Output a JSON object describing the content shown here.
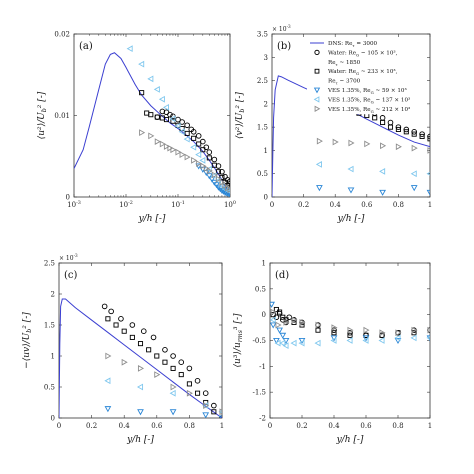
{
  "chart_data": [
    {
      "panel": "(a)",
      "type": "scatter",
      "xscale": "log",
      "xlim": [
        0.001,
        1
      ],
      "ylim": [
        0,
        0.02
      ],
      "xticks": [
        "10^{-3}",
        "10^{-2}",
        "10^{-1}",
        "10^{0}"
      ],
      "yticks": [
        "0",
        "0.01",
        "0.02"
      ],
      "xlabel": "y/h [-]",
      "ylabel": "⟨u²⟩/U_b² [-]",
      "series": [
        {
          "name": "DNS: Re_τ = 3000",
          "kind": "line",
          "color": "#3b3fd1",
          "x": [
            0.001,
            0.0015,
            0.002,
            0.003,
            0.004,
            0.005,
            0.006,
            0.008,
            0.01,
            0.015,
            0.02,
            0.03,
            0.05,
            0.07,
            0.1,
            0.15,
            0.2,
            0.3,
            0.4,
            0.5,
            0.6,
            0.7,
            0.8,
            0.9,
            1.0
          ],
          "y": [
            0.0035,
            0.0058,
            0.0088,
            0.0132,
            0.0163,
            0.0175,
            0.0177,
            0.017,
            0.0159,
            0.0138,
            0.0125,
            0.0112,
            0.0099,
            0.0091,
            0.0084,
            0.0075,
            0.0068,
            0.0056,
            0.0045,
            0.0036,
            0.0028,
            0.0021,
            0.0014,
            0.0008,
            0.0003
          ]
        },
        {
          "name": "Water: Re_G ~ 105 × 10³, Re_τ ~ 1850",
          "kind": "marker",
          "marker": "circle",
          "color": "#000000",
          "x": [
            0.04,
            0.05,
            0.06,
            0.07,
            0.08,
            0.1,
            0.12,
            0.15,
            0.18,
            0.2,
            0.25,
            0.3,
            0.35,
            0.4,
            0.5,
            0.6,
            0.7,
            0.8,
            0.9,
            1.0
          ],
          "y": [
            0.0098,
            0.0105,
            0.0104,
            0.0101,
            0.0099,
            0.0095,
            0.0092,
            0.0088,
            0.0083,
            0.008,
            0.0075,
            0.0068,
            0.0061,
            0.0055,
            0.0046,
            0.0038,
            0.0031,
            0.0025,
            0.0021,
            0.0019
          ]
        },
        {
          "name": "Water: Re_G ~ 233 × 10³, Re_τ ~ 3700",
          "kind": "marker",
          "marker": "square",
          "color": "#000000",
          "x": [
            0.02,
            0.025,
            0.03,
            0.04,
            0.05,
            0.06,
            0.08,
            0.1,
            0.12,
            0.15,
            0.2,
            0.25,
            0.3,
            0.4,
            0.5,
            0.6,
            0.7,
            0.8,
            0.9,
            1.0
          ],
          "y": [
            0.0128,
            0.0103,
            0.0101,
            0.0098,
            0.0097,
            0.0095,
            0.0093,
            0.0088,
            0.0084,
            0.0078,
            0.0072,
            0.0065,
            0.0058,
            0.0048,
            0.0039,
            0.0031,
            0.0024,
            0.0018,
            0.0014,
            0.0012
          ]
        },
        {
          "name": "VES 1.35%, Re_G ~ 59 × 10³",
          "kind": "marker",
          "marker": "tri-down",
          "color": "#2a86d6",
          "x": [
            0.25,
            0.3,
            0.35,
            0.4,
            0.45,
            0.5,
            0.55,
            0.6,
            0.65,
            0.7,
            0.75,
            0.8,
            0.85,
            0.9,
            0.95,
            1.0
          ],
          "y": [
            0.0038,
            0.0034,
            0.003,
            0.0026,
            0.0022,
            0.0018,
            0.0015,
            0.0012,
            0.001,
            0.0008,
            0.0007,
            0.0006,
            0.0005,
            0.0005,
            0.0004,
            0.0004
          ]
        },
        {
          "name": "VES 1.35%, Re_G ~ 137 × 10³",
          "kind": "marker",
          "marker": "tri-left",
          "color": "#7fc7ee",
          "x": [
            0.012,
            0.02,
            0.03,
            0.04,
            0.05,
            0.06,
            0.08,
            0.1,
            0.12,
            0.15,
            0.2,
            0.25,
            0.3,
            0.4,
            0.5,
            0.6,
            0.7,
            0.8,
            0.9,
            1.0
          ],
          "y": [
            0.0182,
            0.0163,
            0.0145,
            0.0132,
            0.012,
            0.011,
            0.0096,
            0.0087,
            0.008,
            0.0071,
            0.0061,
            0.0052,
            0.0045,
            0.0034,
            0.0026,
            0.002,
            0.0014,
            0.001,
            0.0008,
            0.0007
          ]
        },
        {
          "name": "VES 1.35%, Re_G ~ 212 × 10³",
          "kind": "marker",
          "marker": "tri-right",
          "color": "#8e8e8e",
          "x": [
            0.02,
            0.03,
            0.04,
            0.05,
            0.06,
            0.07,
            0.08,
            0.1,
            0.12,
            0.15,
            0.2,
            0.25,
            0.3,
            0.35,
            0.4,
            0.5,
            0.6,
            0.7,
            0.8,
            0.9,
            1.0
          ],
          "y": [
            0.0079,
            0.0075,
            0.0068,
            0.0065,
            0.0062,
            0.006,
            0.0058,
            0.0055,
            0.0052,
            0.0049,
            0.0045,
            0.0041,
            0.0038,
            0.0035,
            0.0032,
            0.0027,
            0.0022,
            0.0018,
            0.0014,
            0.0011,
            0.0009
          ]
        }
      ]
    },
    {
      "panel": "(b)",
      "type": "scatter",
      "xlim": [
        0,
        1
      ],
      "ylim": [
        0,
        0.0035
      ],
      "multiplier": "× 10^{-3}",
      "xticks": [
        "0",
        "0.2",
        "0.4",
        "0.6",
        "0.8",
        "1"
      ],
      "yticks": [
        "0",
        "0.5",
        "1",
        "1.5",
        "2",
        "2.5",
        "3",
        "3.5"
      ],
      "xlabel": "y/h [-]",
      "ylabel": "⟨v²⟩/U_b² [-]",
      "legend_position": "top-right",
      "series": [
        {
          "name": "DNS: Re_τ = 3000",
          "kind": "line",
          "color": "#3b3fd1",
          "x": [
            0,
            0.005,
            0.01,
            0.02,
            0.04,
            0.06,
            0.1,
            0.15,
            0.2,
            0.3,
            0.4,
            0.5,
            0.6,
            0.7,
            0.8,
            0.9,
            1.0
          ],
          "y": [
            0,
            0.0009,
            0.0017,
            0.0023,
            0.0026,
            0.00258,
            0.00251,
            0.00243,
            0.00235,
            0.0022,
            0.00203,
            0.00185,
            0.00167,
            0.0015,
            0.00133,
            0.00118,
            0.00108
          ]
        },
        {
          "name": "Water: Re_G ~ 105 × 10³, Re_τ ~ 1850",
          "kind": "marker",
          "marker": "circle",
          "color": "#000000",
          "x": [
            0.28,
            0.32,
            0.38,
            0.45,
            0.52,
            0.58,
            0.65,
            0.7,
            0.75,
            0.8,
            0.85,
            0.9,
            0.95,
            1.0
          ],
          "y": [
            0.0024,
            0.00235,
            0.0022,
            0.0021,
            0.002,
            0.0019,
            0.0018,
            0.0017,
            0.0016,
            0.0015,
            0.00145,
            0.0014,
            0.00135,
            0.0013
          ]
        },
        {
          "name": "Water: Re_G ~ 233 × 10³, Re_τ ~ 3700",
          "kind": "marker",
          "marker": "square",
          "color": "#000000",
          "x": [
            0.3,
            0.35,
            0.4,
            0.45,
            0.5,
            0.55,
            0.6,
            0.65,
            0.7,
            0.75,
            0.8,
            0.85,
            0.9,
            0.95,
            1.0
          ],
          "y": [
            0.0022,
            0.0021,
            0.002,
            0.0019,
            0.00185,
            0.0018,
            0.00175,
            0.0017,
            0.0016,
            0.0015,
            0.00145,
            0.0014,
            0.00135,
            0.0013,
            0.00125
          ]
        },
        {
          "name": "VES 1.35%, Re_G ~ 59 × 10³",
          "kind": "marker",
          "marker": "tri-down",
          "color": "#2a86d6",
          "x": [
            0.3,
            0.5,
            0.7,
            0.9,
            1.0
          ],
          "y": [
            0.0002,
            0.00015,
            0.0001,
            0.0002,
            0.0001
          ]
        },
        {
          "name": "VES 1.35%, Re_G ~ 137 × 10³",
          "kind": "marker",
          "marker": "tri-left",
          "color": "#7fc7ee",
          "x": [
            0.3,
            0.5,
            0.7,
            0.9,
            1.0
          ],
          "y": [
            0.0007,
            0.0006,
            0.00055,
            0.0005,
            0.0005
          ]
        },
        {
          "name": "VES 1.35%, Re_G ~ 212 × 10³",
          "kind": "marker",
          "marker": "tri-right",
          "color": "#8e8e8e",
          "x": [
            0.3,
            0.4,
            0.5,
            0.6,
            0.7,
            0.8,
            0.9,
            1.0
          ],
          "y": [
            0.0012,
            0.00118,
            0.00116,
            0.00114,
            0.0011,
            0.00108,
            0.00105,
            0.001
          ]
        }
      ]
    },
    {
      "panel": "(c)",
      "type": "scatter",
      "xlim": [
        0,
        1
      ],
      "ylim": [
        0,
        0.0025
      ],
      "multiplier": "× 10^{-3}",
      "xticks": [
        "0",
        "0.2",
        "0.4",
        "0.6",
        "0.8",
        "1"
      ],
      "yticks": [
        "0",
        "0.5",
        "1",
        "1.5",
        "2",
        "2.5"
      ],
      "xlabel": "y/h [-]",
      "ylabel": "−⟨uv⟩/U_b² [-]",
      "series": [
        {
          "name": "DNS: Re_τ = 3000",
          "kind": "line",
          "color": "#3b3fd1",
          "x": [
            0,
            0.005,
            0.01,
            0.02,
            0.04,
            0.1,
            0.2,
            0.3,
            0.4,
            0.5,
            0.6,
            0.7,
            0.8,
            0.9,
            1.0
          ],
          "y": [
            0,
            0.0012,
            0.0018,
            0.00192,
            0.00192,
            0.00178,
            0.00158,
            0.00138,
            0.00118,
            0.00098,
            0.00078,
            0.00058,
            0.00038,
            0.00019,
            0.0
          ]
        },
        {
          "name": "Water: Re_G ~ 105 × 10³, Re_τ ~ 1850",
          "kind": "marker",
          "marker": "circle",
          "color": "#000000",
          "x": [
            0.28,
            0.32,
            0.38,
            0.45,
            0.52,
            0.58,
            0.65,
            0.7,
            0.75,
            0.8,
            0.85,
            0.9,
            0.95,
            1.0
          ],
          "y": [
            0.0018,
            0.00172,
            0.0016,
            0.0015,
            0.0014,
            0.0013,
            0.0011,
            0.001,
            0.0009,
            0.0008,
            0.0006,
            0.0004,
            0.0002,
            0.0
          ]
        },
        {
          "name": "Water: Re_G ~ 233 × 10³, Re_τ ~ 3700",
          "kind": "marker",
          "marker": "square",
          "color": "#000000",
          "x": [
            0.3,
            0.35,
            0.4,
            0.45,
            0.5,
            0.55,
            0.6,
            0.65,
            0.7,
            0.75,
            0.8,
            0.85,
            0.9,
            0.95,
            1.0
          ],
          "y": [
            0.0016,
            0.0015,
            0.0014,
            0.0013,
            0.0012,
            0.0011,
            0.001,
            0.0009,
            0.0008,
            0.0007,
            0.00055,
            0.0004,
            0.00025,
            0.0001,
            0.0
          ]
        },
        {
          "name": "VES 1.35%, Re_G ~ 59 × 10³",
          "kind": "marker",
          "marker": "tri-down",
          "color": "#2a86d6",
          "x": [
            0.3,
            0.5,
            0.7,
            0.9,
            1.0
          ],
          "y": [
            0.00015,
            0.0001,
            0.0001,
            5e-05,
            0.0
          ]
        },
        {
          "name": "VES 1.35%, Re_G ~ 137 × 10³",
          "kind": "marker",
          "marker": "tri-left",
          "color": "#7fc7ee",
          "x": [
            0.3,
            0.5,
            0.7,
            0.9,
            1.0
          ],
          "y": [
            0.0006,
            0.0005,
            0.0004,
            0.0002,
            0.0001
          ]
        },
        {
          "name": "VES 1.35%, Re_G ~ 212 × 10³",
          "kind": "marker",
          "marker": "tri-right",
          "color": "#8e8e8e",
          "x": [
            0.3,
            0.4,
            0.5,
            0.6,
            0.7,
            0.8,
            0.9,
            1.0
          ],
          "y": [
            0.001,
            0.0009,
            0.0008,
            0.0007,
            0.0005,
            0.0004,
            0.0002,
            0.0001
          ]
        }
      ]
    },
    {
      "panel": "(d)",
      "type": "scatter",
      "xlim": [
        0,
        1
      ],
      "ylim": [
        -2,
        1
      ],
      "xticks": [
        "0",
        "0.2",
        "0.4",
        "0.6",
        "0.8",
        "1"
      ],
      "yticks": [
        "-2",
        "-1.5",
        "-1",
        "-0.5",
        "0",
        "0.5",
        "1"
      ],
      "xlabel": "y/h [-]",
      "ylabel": "⟨u³⟩/u_rms³ [-]",
      "series": [
        {
          "name": "Water: Re_G ~ 105 × 10³, Re_τ ~ 1850",
          "kind": "marker",
          "marker": "circle",
          "color": "#000000",
          "x": [
            0.04,
            0.06,
            0.08,
            0.1,
            0.12,
            0.15,
            0.2,
            0.3,
            0.4,
            0.5,
            0.6,
            0.7,
            0.8,
            0.9,
            1.0
          ],
          "y": [
            -0.05,
            0.02,
            -0.1,
            -0.15,
            -0.05,
            -0.1,
            -0.15,
            -0.2,
            -0.3,
            -0.35,
            -0.4,
            -0.4,
            -0.35,
            -0.3,
            -0.3
          ]
        },
        {
          "name": "Water: Re_G ~ 233 × 10³, Re_τ ~ 3700",
          "kind": "marker",
          "marker": "square",
          "color": "#000000",
          "x": [
            0.02,
            0.04,
            0.06,
            0.08,
            0.1,
            0.15,
            0.2,
            0.3,
            0.4,
            0.5,
            0.6,
            0.7,
            0.8,
            0.9,
            1.0
          ],
          "y": [
            0.0,
            0.1,
            0.05,
            -0.05,
            -0.1,
            -0.15,
            -0.2,
            -0.3,
            -0.35,
            -0.4,
            -0.4,
            -0.4,
            -0.35,
            -0.35,
            -0.3
          ]
        },
        {
          "name": "VES 1.35%, Re_G ~ 59 × 10³",
          "kind": "marker",
          "marker": "tri-down",
          "color": "#2a86d6",
          "x": [
            0.01,
            0.02,
            0.04,
            0.06,
            0.08,
            0.1,
            0.2,
            0.4,
            0.6,
            0.8,
            1.0
          ],
          "y": [
            0.2,
            -0.2,
            -0.5,
            -0.3,
            -0.4,
            -0.5,
            -0.5,
            -0.45,
            -0.45,
            -0.5,
            -0.45
          ]
        },
        {
          "name": "VES 1.35%, Re_G ~ 137 × 10³",
          "kind": "marker",
          "marker": "tri-left",
          "color": "#7fc7ee",
          "x": [
            0.02,
            0.05,
            0.08,
            0.1,
            0.15,
            0.2,
            0.3,
            0.4,
            0.5,
            0.6,
            0.7,
            0.8,
            0.9,
            1.0
          ],
          "y": [
            -0.1,
            -0.55,
            -0.55,
            -0.6,
            -0.55,
            -0.55,
            -0.55,
            -0.5,
            -0.5,
            -0.5,
            -0.5,
            -0.45,
            -0.45,
            -0.45
          ]
        },
        {
          "name": "VES 1.35%, Re_G ~ 212 × 10³",
          "kind": "marker",
          "marker": "tri-right",
          "color": "#8e8e8e",
          "x": [
            0.02,
            0.05,
            0.1,
            0.15,
            0.2,
            0.3,
            0.4,
            0.5,
            0.6,
            0.7,
            0.8,
            0.9,
            1.0
          ],
          "y": [
            0.05,
            -0.2,
            -0.15,
            -0.1,
            -0.15,
            -0.2,
            -0.25,
            -0.3,
            -0.3,
            -0.35,
            -0.35,
            -0.3,
            -0.3
          ]
        }
      ]
    }
  ],
  "legend": {
    "entries": [
      {
        "marker": "line",
        "color": "#3b3fd1",
        "text": "DNS: Re_τ = 3000"
      },
      {
        "marker": "circle",
        "color": "#000000",
        "text": "Water: Re_G ~ 105 × 10³,"
      },
      {
        "marker": "none",
        "color": "#000000",
        "text": "Re_τ ~ 1850"
      },
      {
        "marker": "square",
        "color": "#000000",
        "text": "Water: Re_G ~ 233 × 10³,"
      },
      {
        "marker": "none",
        "color": "#000000",
        "text": "Re_τ ~ 3700"
      },
      {
        "marker": "tri-down",
        "color": "#2a86d6",
        "text": "VES 1.35%, Re_G ~ 59 × 10³"
      },
      {
        "marker": "tri-left",
        "color": "#7fc7ee",
        "text": "VES 1.35%, Re_G ~ 137 × 10³"
      },
      {
        "marker": "tri-right",
        "color": "#8e8e8e",
        "text": "VES 1.35%, Re_G ~ 212 × 10³"
      }
    ]
  }
}
